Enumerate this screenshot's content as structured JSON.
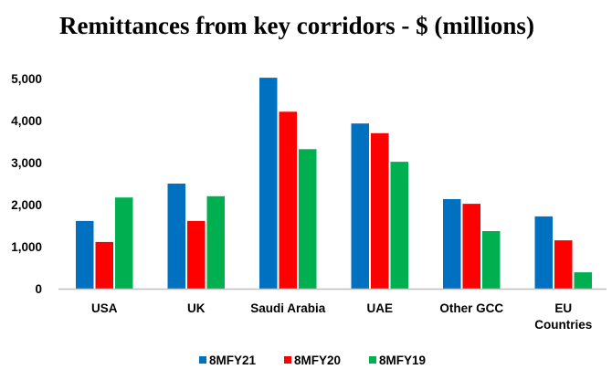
{
  "chart_data": {
    "type": "bar",
    "title": "Remittances from key corridors - $ (millions)",
    "xlabel": "",
    "ylabel": "",
    "ylim": [
      0,
      5000
    ],
    "yticks": [
      0,
      1000,
      2000,
      3000,
      4000,
      5000
    ],
    "ytick_labels": [
      "0",
      "1,000",
      "2,000",
      "3,000",
      "4,000",
      "5,000"
    ],
    "grid": false,
    "legend_position": "bottom",
    "categories": [
      [
        "USA"
      ],
      [
        "UK"
      ],
      [
        "Saudi Arabia"
      ],
      [
        "UAE"
      ],
      [
        "Other GCC"
      ],
      [
        "EU",
        "Countries"
      ]
    ],
    "series": [
      {
        "name": "8MFY21",
        "color": "#0070C0",
        "values": [
          1610,
          2500,
          5020,
          3930,
          2130,
          1720
        ]
      },
      {
        "name": "8MFY20",
        "color": "#FF0000",
        "values": [
          1110,
          1610,
          4210,
          3700,
          2020,
          1150
        ]
      },
      {
        "name": "8MFY19",
        "color": "#00B050",
        "values": [
          2170,
          2200,
          3320,
          3020,
          1370,
          390
        ]
      }
    ]
  }
}
